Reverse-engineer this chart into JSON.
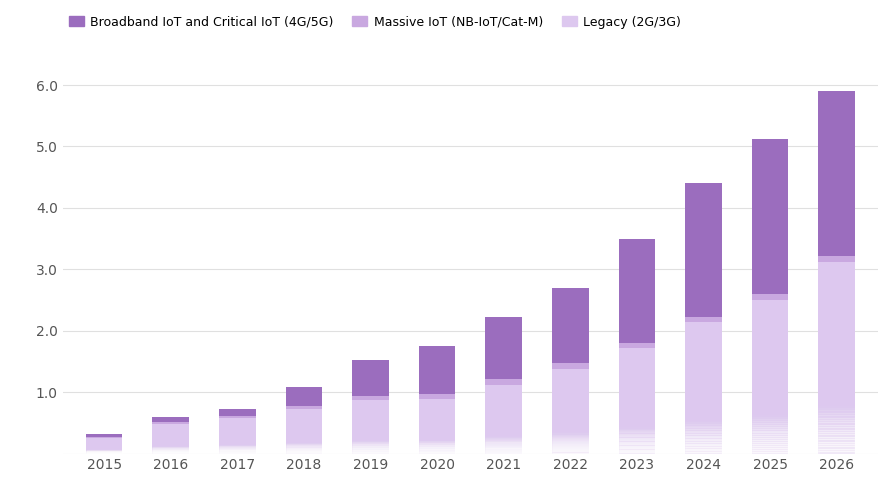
{
  "years": [
    2015,
    2016,
    2017,
    2018,
    2019,
    2020,
    2021,
    2022,
    2023,
    2024,
    2025,
    2026
  ],
  "broadband": [
    0.05,
    0.08,
    0.1,
    0.3,
    0.58,
    0.78,
    1.0,
    1.22,
    1.7,
    2.18,
    2.52,
    2.68
  ],
  "massive": [
    0.02,
    0.04,
    0.04,
    0.06,
    0.07,
    0.08,
    0.1,
    0.1,
    0.08,
    0.08,
    0.1,
    0.1
  ],
  "legacy": [
    0.25,
    0.48,
    0.58,
    0.72,
    0.87,
    0.89,
    1.12,
    1.38,
    1.72,
    2.14,
    2.5,
    3.12
  ],
  "color_broadband": "#9b6dbe",
  "color_massive": "#c9a8e0",
  "color_legacy": "#ddc8ef",
  "ylim": [
    0,
    6.4
  ],
  "yticks": [
    0,
    1.0,
    2.0,
    3.0,
    4.0,
    5.0,
    6.0
  ],
  "ytick_labels": [
    "",
    "1.0",
    "2.0",
    "3.0",
    "4.0",
    "5.0",
    "6.0"
  ],
  "legend_labels": [
    "Broadband IoT and Critical IoT (4G/5G)",
    "Massive IoT (NB-IoT/Cat-M)",
    "Legacy (2G/3G)"
  ],
  "background_color": "#ffffff",
  "grid_color": "#e0e0e0",
  "bar_width": 0.55
}
